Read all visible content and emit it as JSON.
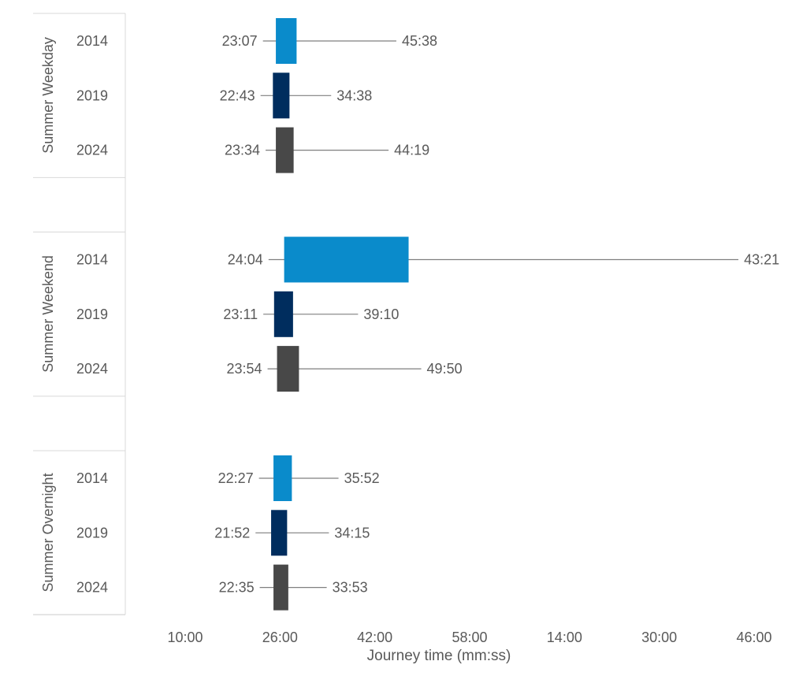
{
  "chart_data": {
    "type": "bar",
    "subtype": "floating-range-with-whiskers",
    "xlabel": "Journey time (mm:ss)",
    "x_ticks": [
      "10:00",
      "26:00",
      "42:00",
      "58:00",
      "14:00",
      "30:00",
      "46:00"
    ],
    "x_tick_minutes": [
      10,
      26,
      42,
      58,
      74,
      90,
      106
    ],
    "xlim_minutes": [
      10,
      106
    ],
    "grid": false,
    "legend": "none",
    "colors": {
      "2014": "#0A8BCB",
      "2019": "#002D5E",
      "2024": "#484848"
    },
    "groups": [
      {
        "name": "Summer Weekday",
        "rows": [
          {
            "year": "2014",
            "min_label": "23:07",
            "max_label": "45:38",
            "min_minutes": 23.12,
            "box_start_minutes": 25.3,
            "box_end_minutes": 28.8,
            "max_minutes": 45.63
          },
          {
            "year": "2019",
            "min_label": "22:43",
            "max_label": "34:38",
            "min_minutes": 22.72,
            "box_start_minutes": 24.8,
            "box_end_minutes": 27.6,
            "max_minutes": 34.63
          },
          {
            "year": "2024",
            "min_label": "23:34",
            "max_label": "44:19",
            "min_minutes": 23.57,
            "box_start_minutes": 25.3,
            "box_end_minutes": 28.3,
            "max_minutes": 44.32
          }
        ]
      },
      {
        "name": "Summer Weekend",
        "rows": [
          {
            "year": "2014",
            "min_label": "24:04",
            "max_label": "43:21",
            "min_minutes": 24.07,
            "box_start_minutes": 26.7,
            "box_end_minutes": 47.7,
            "max_minutes": 103.35
          },
          {
            "year": "2019",
            "min_label": "23:11",
            "max_label": "39:10",
            "min_minutes": 23.18,
            "box_start_minutes": 25.0,
            "box_end_minutes": 28.2,
            "max_minutes": 39.17
          },
          {
            "year": "2024",
            "min_label": "23:54",
            "max_label": "49:50",
            "min_minutes": 23.9,
            "box_start_minutes": 25.5,
            "box_end_minutes": 29.2,
            "max_minutes": 49.83
          }
        ]
      },
      {
        "name": "Summer Overnight",
        "rows": [
          {
            "year": "2014",
            "min_label": "22:27",
            "max_label": "35:52",
            "min_minutes": 22.45,
            "box_start_minutes": 24.9,
            "box_end_minutes": 28.0,
            "max_minutes": 35.87
          },
          {
            "year": "2019",
            "min_label": "21:52",
            "max_label": "34:15",
            "min_minutes": 21.87,
            "box_start_minutes": 24.5,
            "box_end_minutes": 27.2,
            "max_minutes": 34.25
          },
          {
            "year": "2024",
            "min_label": "22:35",
            "max_label": "33:53",
            "min_minutes": 22.58,
            "box_start_minutes": 24.9,
            "box_end_minutes": 27.4,
            "max_minutes": 33.88
          }
        ]
      }
    ]
  }
}
